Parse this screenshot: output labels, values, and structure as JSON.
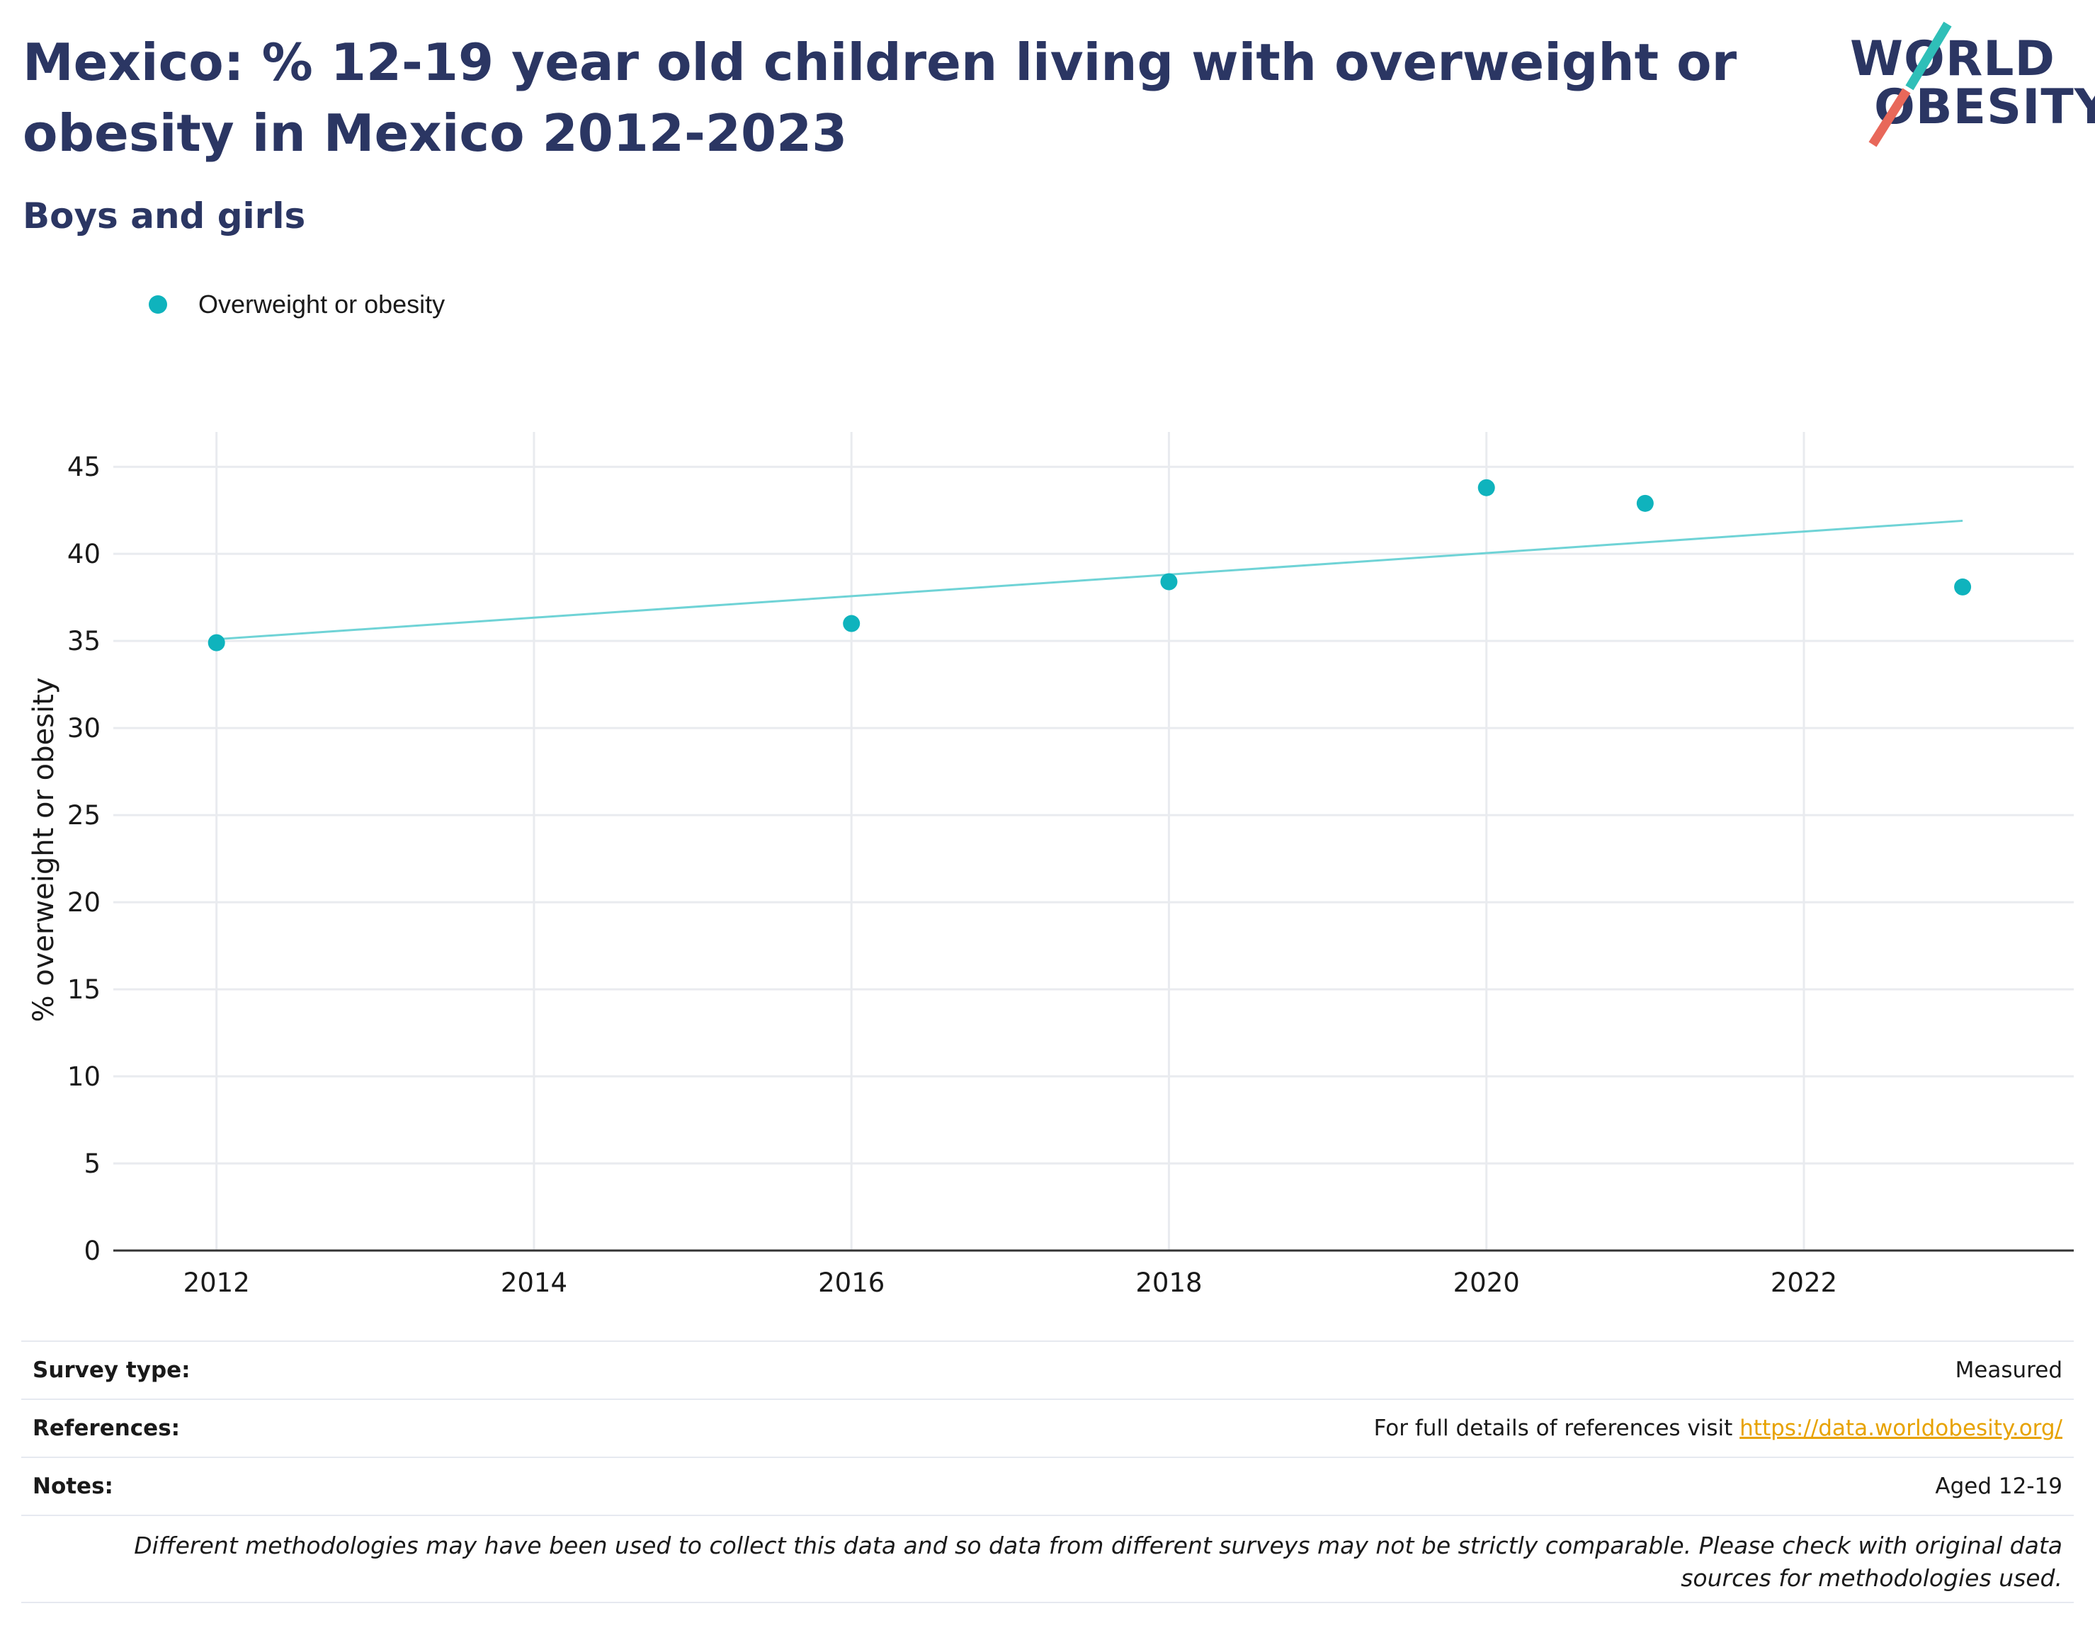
{
  "header": {
    "title": "Mexico: % 12-19 year old children living with overweight or obesity in Mexico 2012-2023",
    "subtitle": "Boys and girls"
  },
  "logo": {
    "line1": "WORLD",
    "line2": "OBESITY",
    "accent_teal": "#2fbfb8",
    "accent_red": "#e8685a"
  },
  "chart_data": {
    "type": "scatter",
    "series": [
      {
        "name": "Overweight or obesity",
        "color": "#0fb3bd",
        "x": [
          2012,
          2016,
          2018,
          2020,
          2021,
          2023
        ],
        "values": [
          34.9,
          36.0,
          38.4,
          43.8,
          42.9,
          38.1
        ]
      }
    ],
    "trendline": {
      "color": "#6fd3d6",
      "x": [
        2012,
        2023
      ],
      "y": [
        35.1,
        41.9
      ]
    },
    "x_ticks": [
      "2012",
      "2014",
      "2016",
      "2018",
      "2020",
      "2022"
    ],
    "y_ticks": [
      "0",
      "5",
      "10",
      "15",
      "20",
      "25",
      "30",
      "35",
      "40",
      "45"
    ],
    "xlim": [
      2011.35,
      2023.7
    ],
    "ylim": [
      0,
      47
    ],
    "ylabel": "% overweight or obesity",
    "grid": true,
    "legend_position": "top-left"
  },
  "info": {
    "survey_type_label": "Survey type:",
    "survey_type_value": "Measured",
    "references_label": "References:",
    "references_text": "For full details of references visit ",
    "references_link": "https://data.worldobesity.org/",
    "notes_label": "Notes:",
    "notes_value": "Aged 12-19",
    "disclaimer": "Different methodologies may have been used to collect this data and so data from different surveys may not be strictly comparable. Please check with original data sources for methodologies used."
  }
}
